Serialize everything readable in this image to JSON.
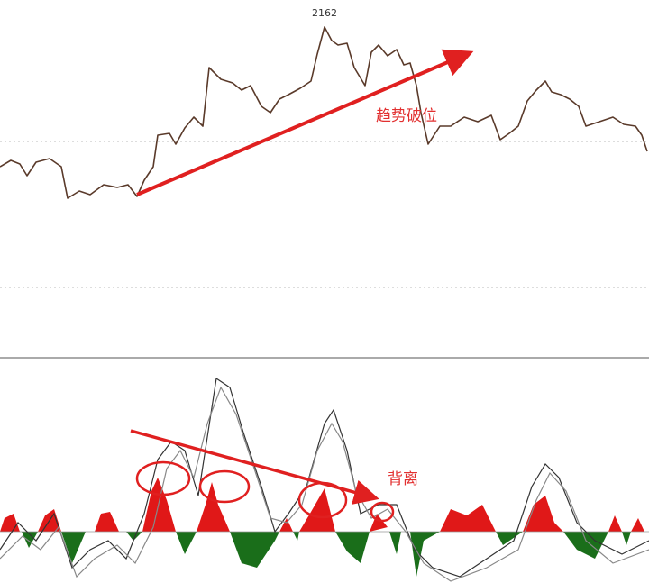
{
  "annotations": {
    "peak_label": "2162",
    "trend_label": "趋势破位",
    "divergence_label": "背离"
  }
}
